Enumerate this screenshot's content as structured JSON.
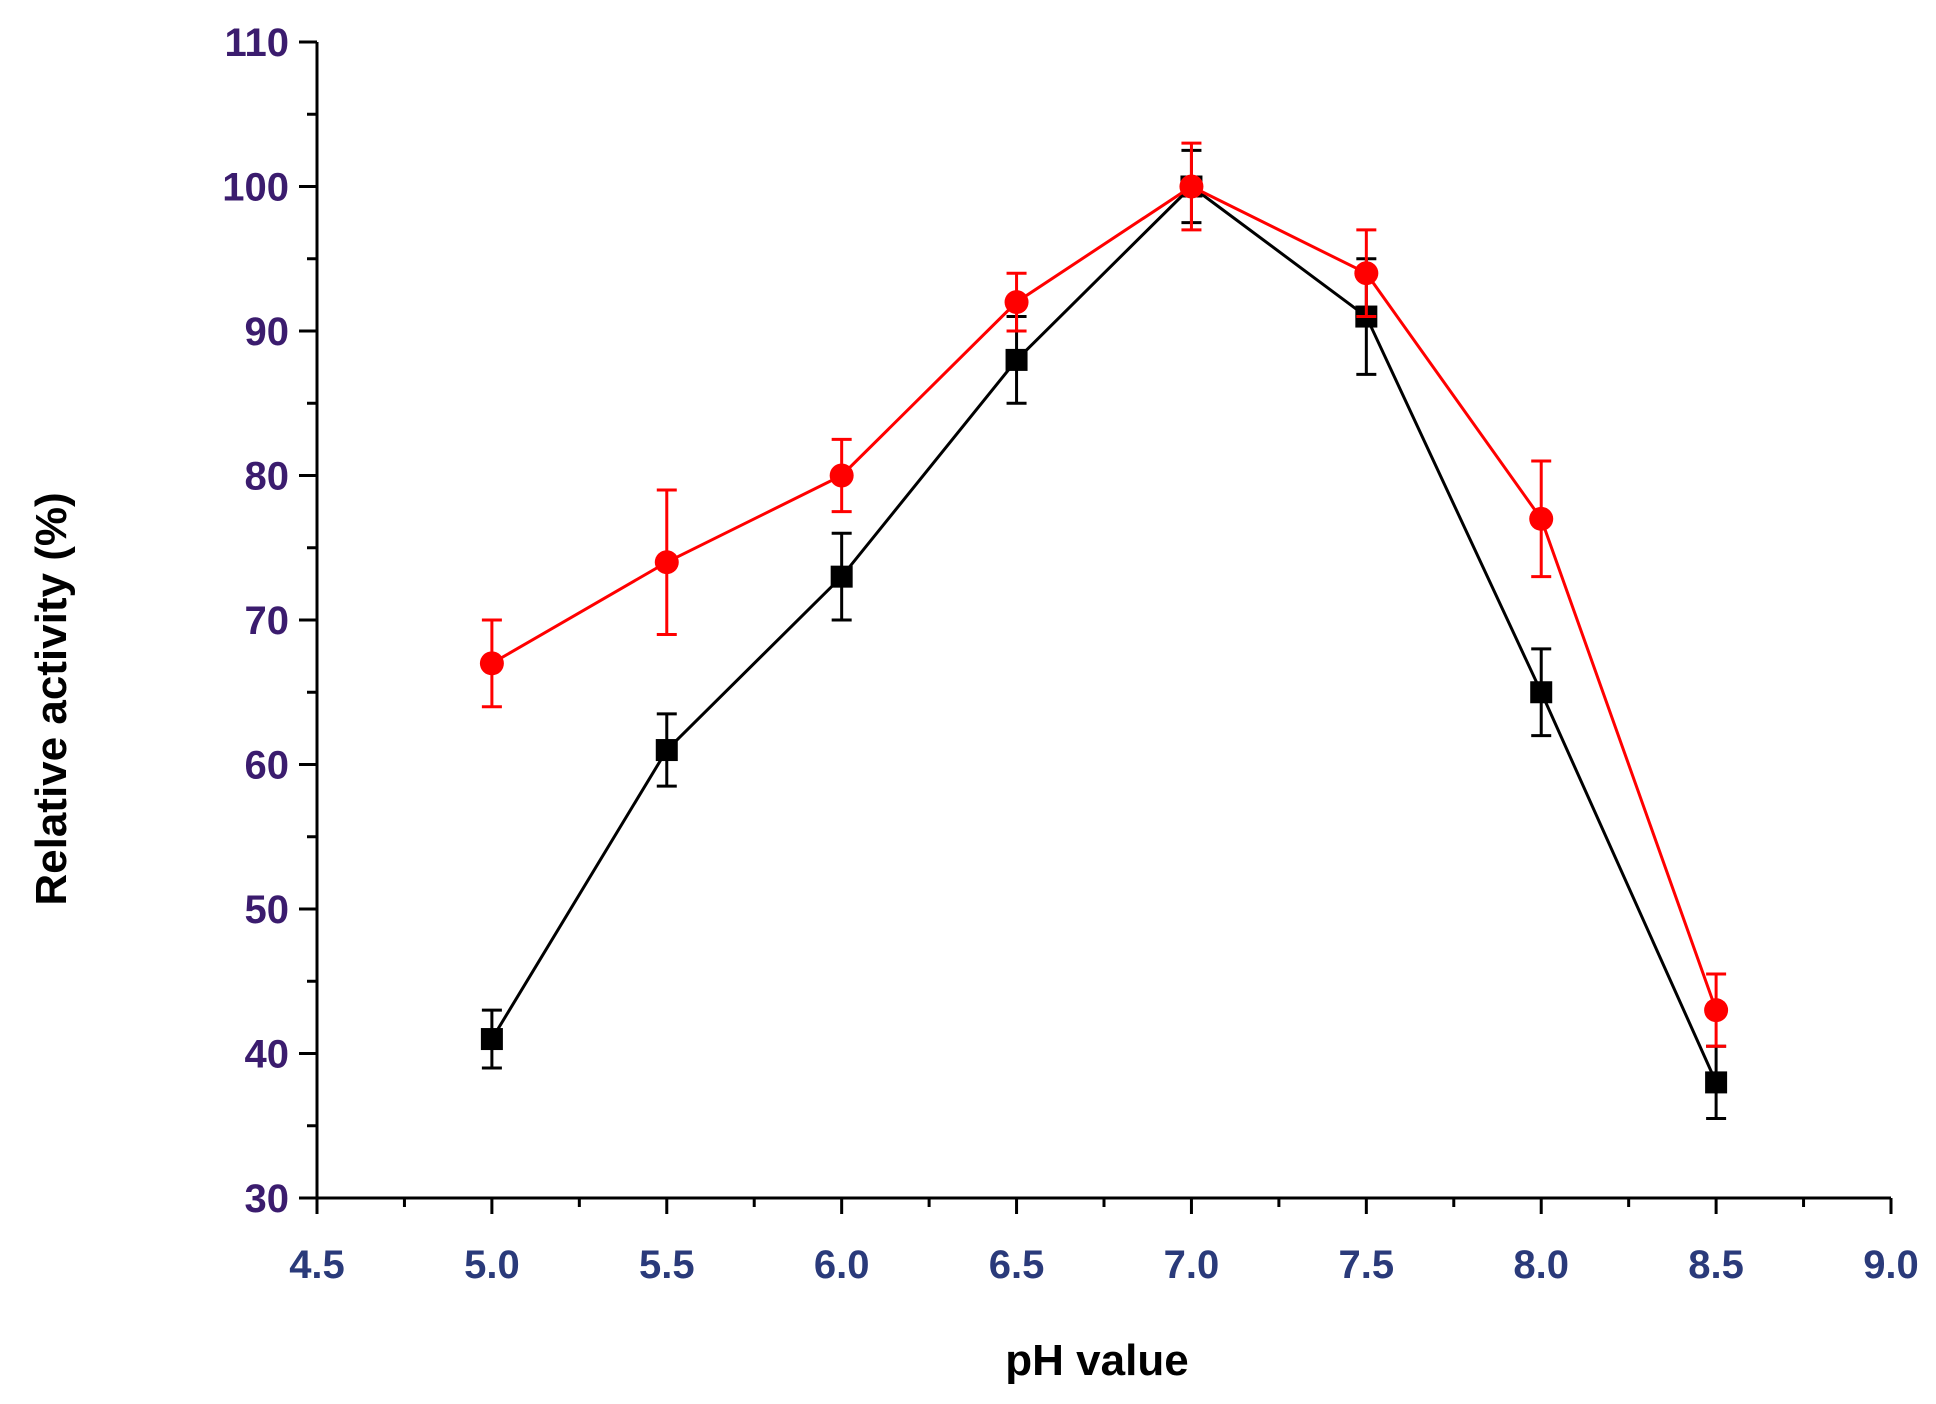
{
  "chart_data": {
    "type": "line",
    "title": "",
    "xlabel": "pH value",
    "ylabel": "Relative activity (%)",
    "xlim": [
      4.5,
      9.0
    ],
    "ylim": [
      30,
      110
    ],
    "x_major_ticks": [
      4.5,
      5.0,
      5.5,
      6.0,
      6.5,
      7.0,
      7.5,
      8.0,
      8.5,
      9.0
    ],
    "x_tick_labels": [
      "4.5",
      "5.0",
      "5.5",
      "6.0",
      "6.5",
      "7.0",
      "7.5",
      "8.0",
      "8.5",
      "9.0"
    ],
    "y_major_ticks": [
      30,
      40,
      50,
      60,
      70,
      80,
      90,
      100,
      110
    ],
    "y_tick_labels": [
      "30",
      "40",
      "50",
      "60",
      "70",
      "80",
      "90",
      "100",
      "110"
    ],
    "grid": false,
    "legend": "none",
    "series": [
      {
        "name": "black squares",
        "color": "#000000",
        "marker": "square",
        "x": [
          5.0,
          5.5,
          6.0,
          6.5,
          7.0,
          7.5,
          8.0,
          8.5
        ],
        "y": [
          41,
          61,
          73,
          88,
          100,
          91,
          65,
          38
        ],
        "err": [
          2,
          2.5,
          3,
          3,
          2.5,
          4,
          3,
          2.5
        ]
      },
      {
        "name": "red circles",
        "color": "#ff0000",
        "marker": "circle",
        "x": [
          5.0,
          5.5,
          6.0,
          6.5,
          7.0,
          7.5,
          8.0,
          8.5
        ],
        "y": [
          67,
          74,
          80,
          92,
          100,
          94,
          77,
          43
        ],
        "err": [
          3,
          5,
          2.5,
          2,
          3,
          3,
          4,
          2.5
        ]
      }
    ]
  }
}
